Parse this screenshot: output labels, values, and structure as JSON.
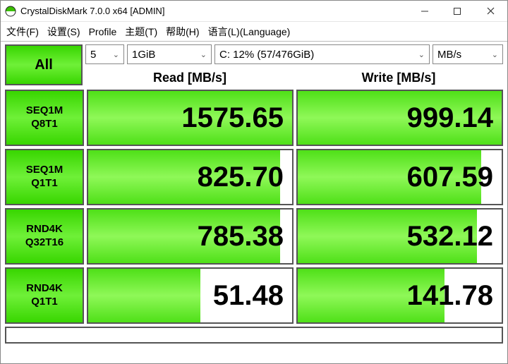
{
  "window": {
    "title": "CrystalDiskMark 7.0.0 x64 [ADMIN]",
    "icon_colors": {
      "top": "#3ac000",
      "bottom": "#ffffff"
    }
  },
  "menu": {
    "file": "文件(F)",
    "settings": "设置(S)",
    "profile": "Profile",
    "theme": "主题(T)",
    "help": "帮助(H)",
    "language": "语言(L)(Language)"
  },
  "toolbar": {
    "all_label": "All",
    "count": "5",
    "size": "1GiB",
    "drive": "C: 12% (57/476GiB)",
    "unit": "MB/s"
  },
  "headers": {
    "read": "Read [MB/s]",
    "write": "Write [MB/s]"
  },
  "rows": [
    {
      "l1": "SEQ1M",
      "l2": "Q8T1",
      "read": "1575.65",
      "read_pct": 100,
      "write": "999.14",
      "write_pct": 100
    },
    {
      "l1": "SEQ1M",
      "l2": "Q1T1",
      "read": "825.70",
      "read_pct": 94,
      "write": "607.59",
      "write_pct": 90
    },
    {
      "l1": "RND4K",
      "l2": "Q32T16",
      "read": "785.38",
      "read_pct": 94,
      "write": "532.12",
      "write_pct": 88
    },
    {
      "l1": "RND4K",
      "l2": "Q1T1",
      "read": "51.48",
      "read_pct": 55,
      "write": "141.78",
      "write_pct": 72
    }
  ],
  "colors": {
    "green_bar": "#4fe018",
    "border": "#555555",
    "background": "#ffffff"
  }
}
